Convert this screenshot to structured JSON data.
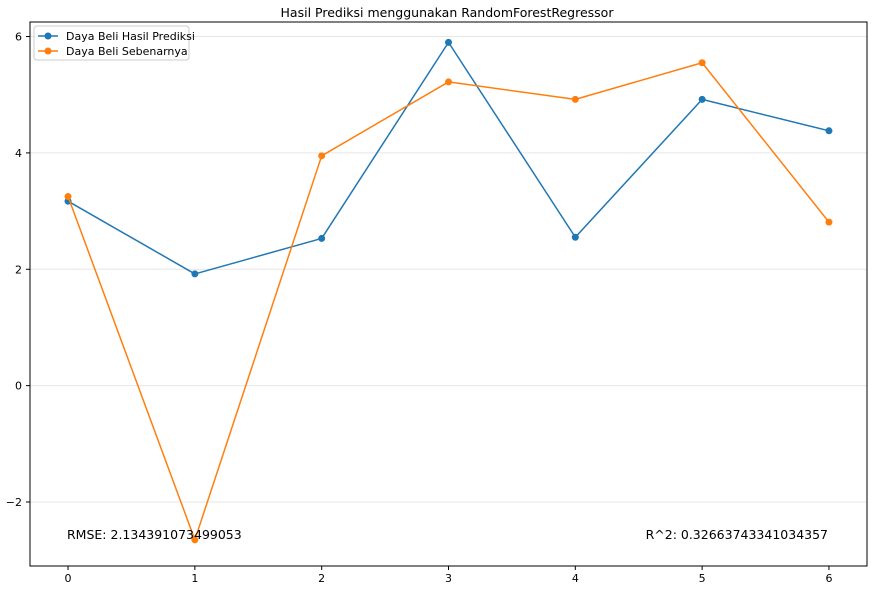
{
  "chart_data": {
    "type": "line",
    "title": "Hasil Prediksi menggunakan RandomForestRegressor",
    "xlabel": "",
    "ylabel": "",
    "x": [
      0,
      1,
      2,
      3,
      4,
      5,
      6
    ],
    "xlim": [
      -0.3,
      6.3
    ],
    "ylim": [
      -3.1,
      6.25
    ],
    "xticks": [
      "0",
      "1",
      "2",
      "3",
      "4",
      "5",
      "6"
    ],
    "yticks": [
      "6",
      "4",
      "2",
      "0",
      "−2"
    ],
    "ytick_values": [
      6,
      4,
      2,
      0,
      -2
    ],
    "grid": "horizontal",
    "legend_position": "top-left",
    "series": [
      {
        "name": "Daya Beli Hasil Prediksi",
        "color": "#1f77b4",
        "values": [
          3.17,
          1.92,
          2.53,
          5.9,
          2.55,
          4.92,
          4.38
        ]
      },
      {
        "name": "Daya Beli Sebenarnya",
        "color": "#ff7f0e",
        "values": [
          3.25,
          -2.65,
          3.95,
          5.22,
          4.92,
          5.55,
          2.81
        ]
      }
    ],
    "annotations": [
      {
        "text": "RMSE: 2.134391073499053",
        "anchor": "bottom-left"
      },
      {
        "text": "R^2: 0.32663743341034357",
        "anchor": "bottom-right"
      }
    ]
  }
}
